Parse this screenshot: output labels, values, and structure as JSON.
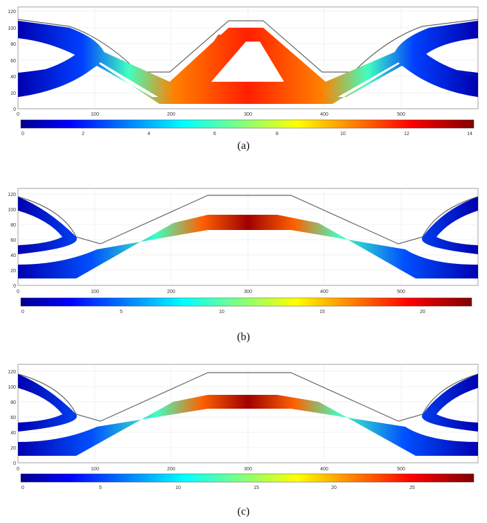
{
  "chart_data": [
    {
      "type": "heatmap",
      "caption": "(a)",
      "x_ticks": [
        "0",
        "100",
        "200",
        "300",
        "400",
        "500"
      ],
      "y_ticks": [
        "0",
        "20",
        "40",
        "60",
        "80",
        "100",
        "120"
      ],
      "xlim": [
        0,
        600
      ],
      "ylim": [
        0,
        125
      ],
      "grid": true,
      "colorbar": {
        "range": [
          0,
          14.5
        ],
        "ticks": [
          "0",
          "2",
          "4",
          "6",
          "8",
          "10",
          "12",
          "14"
        ]
      },
      "colormap": "jet"
    },
    {
      "type": "heatmap",
      "caption": "(b)",
      "x_ticks": [
        "0",
        "100",
        "200",
        "300",
        "400",
        "500"
      ],
      "y_ticks": [
        "0",
        "20",
        "40",
        "60",
        "80",
        "100",
        "120"
      ],
      "xlim": [
        0,
        600
      ],
      "ylim": [
        0,
        125
      ],
      "grid": true,
      "colorbar": {
        "range": [
          0,
          22.5
        ],
        "ticks": [
          "0",
          "5",
          "10",
          "15",
          "20"
        ]
      },
      "colormap": "jet"
    },
    {
      "type": "heatmap",
      "caption": "(c)",
      "x_ticks": [
        "0",
        "100",
        "200",
        "300",
        "400",
        "500"
      ],
      "y_ticks": [
        "0",
        "20",
        "40",
        "60",
        "80",
        "100",
        "120"
      ],
      "xlim": [
        0,
        600
      ],
      "ylim": [
        0,
        125
      ],
      "grid": true,
      "colorbar": {
        "range": [
          0,
          29
        ],
        "ticks": [
          "0",
          "5",
          "10",
          "15",
          "20",
          "25"
        ]
      },
      "colormap": "jet"
    }
  ]
}
